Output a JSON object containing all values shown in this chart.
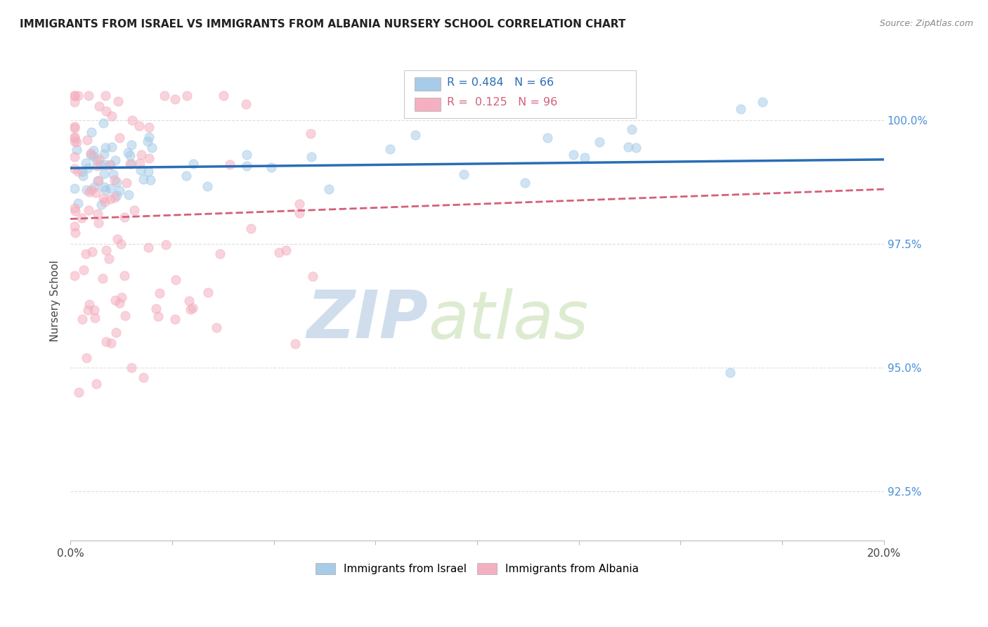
{
  "title": "IMMIGRANTS FROM ISRAEL VS IMMIGRANTS FROM ALBANIA NURSERY SCHOOL CORRELATION CHART",
  "source": "Source: ZipAtlas.com",
  "ylabel": "Nursery School",
  "legend_israel": "Immigrants from Israel",
  "legend_albania": "Immigrants from Albania",
  "r_israel": 0.484,
  "n_israel": 66,
  "r_albania": 0.125,
  "n_albania": 96,
  "watermark_zip": "ZIP",
  "watermark_atlas": "atlas",
  "israel_color": "#a8cce8",
  "albania_color": "#f4b0c0",
  "israel_line_color": "#2a6db5",
  "albania_line_color": "#d4607a",
  "background_color": "#ffffff",
  "x_min": 0.0,
  "x_max": 0.2,
  "y_min": 91.5,
  "y_max": 101.2
}
